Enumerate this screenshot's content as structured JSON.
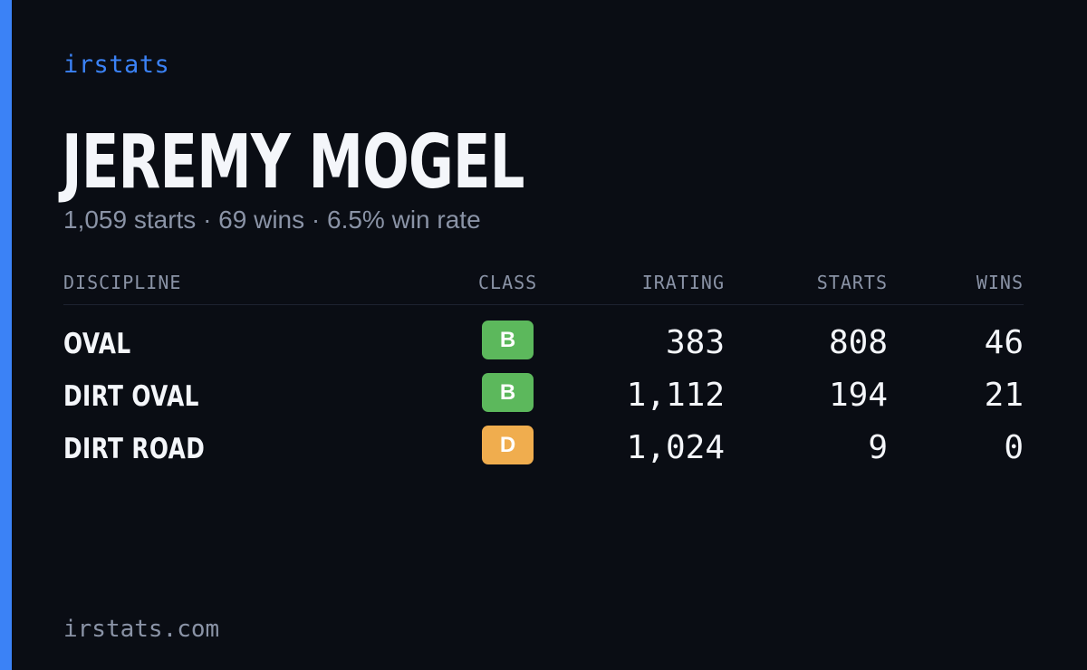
{
  "brand": "irstats",
  "player": {
    "name": "JEREMY MOGEL",
    "summary": "1,059 starts · 69 wins · 6.5% win rate"
  },
  "table": {
    "headers": {
      "discipline": "DISCIPLINE",
      "class": "CLASS",
      "irating": "IRATING",
      "starts": "STARTS",
      "wins": "WINS"
    },
    "rows": [
      {
        "discipline": "OVAL",
        "class": "B",
        "class_color": "#5cb85c",
        "irating": "383",
        "starts": "808",
        "wins": "46"
      },
      {
        "discipline": "DIRT OVAL",
        "class": "B",
        "class_color": "#5cb85c",
        "irating": "1,112",
        "starts": "194",
        "wins": "21"
      },
      {
        "discipline": "DIRT ROAD",
        "class": "D",
        "class_color": "#f0ad4e",
        "irating": "1,024",
        "starts": "9",
        "wins": "0"
      }
    ]
  },
  "footer": "irstats.com",
  "colors": {
    "accent": "#3b82f6",
    "background": "#0a0d14",
    "muted_text": "#8a93a6",
    "class_b": "#5cb85c",
    "class_d": "#f0ad4e"
  }
}
